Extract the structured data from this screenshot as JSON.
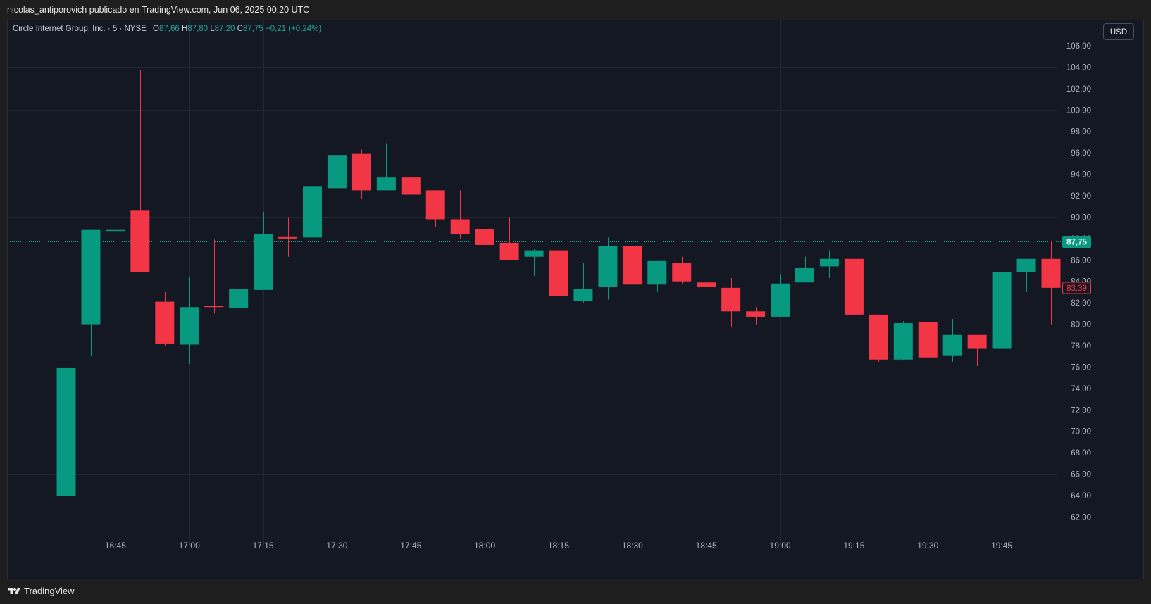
{
  "header": {
    "publish_line": "nicolas_antiporovich publicado en TradingView.com, Jun 06, 2025 00:20 UTC"
  },
  "legend": {
    "symbol": "Circle Internet Group, Inc. · 5 · NYSE",
    "o_label": "O",
    "o_value": "87,66",
    "h_label": "H",
    "h_value": "87,80",
    "l_label": "L",
    "l_value": "87,20",
    "c_label": "C",
    "c_value": "87,75",
    "change": "+0,21 (+0,24%)"
  },
  "currency_button": "USD",
  "footer": {
    "brand": "TradingView"
  },
  "colors": {
    "up": "#089981",
    "down": "#f23645",
    "background": "#141823",
    "grid": "#232734",
    "last_price_line": "#26a69a"
  },
  "chart_data": {
    "type": "candlestick",
    "interval": "5",
    "y_range": [
      60.4,
      107.5
    ],
    "y_ticks": [
      "62,00",
      "64,00",
      "66,00",
      "68,00",
      "70,00",
      "72,00",
      "74,00",
      "76,00",
      "78,00",
      "80,00",
      "82,00",
      "84,00",
      "86,00",
      "88,00",
      "90,00",
      "92,00",
      "94,00",
      "96,00",
      "98,00",
      "100,00",
      "102,00",
      "104,00",
      "106,00"
    ],
    "x_ticks": [
      {
        "label": "16:45",
        "index": 2
      },
      {
        "label": "17:00",
        "index": 5
      },
      {
        "label": "17:15",
        "index": 8
      },
      {
        "label": "17:30",
        "index": 11
      },
      {
        "label": "17:45",
        "index": 14
      },
      {
        "label": "18:00",
        "index": 17
      },
      {
        "label": "18:15",
        "index": 20
      },
      {
        "label": "18:30",
        "index": 23
      },
      {
        "label": "18:45",
        "index": 26
      },
      {
        "label": "19:00",
        "index": 29
      },
      {
        "label": "19:15",
        "index": 32
      },
      {
        "label": "19:30",
        "index": 35
      },
      {
        "label": "19:45",
        "index": 38
      }
    ],
    "candles": [
      {
        "o": 64.0,
        "h": 75.9,
        "l": 64.0,
        "c": 75.9
      },
      {
        "o": 80.0,
        "h": 88.8,
        "l": 77.0,
        "c": 88.8
      },
      {
        "o": 88.8,
        "h": 88.8,
        "l": 88.8,
        "c": 88.8
      },
      {
        "o": 90.6,
        "h": 103.7,
        "l": 84.9,
        "c": 84.9
      },
      {
        "o": 82.1,
        "h": 83.0,
        "l": 78.0,
        "c": 78.2
      },
      {
        "o": 78.1,
        "h": 84.4,
        "l": 76.3,
        "c": 81.6
      },
      {
        "o": 81.7,
        "h": 87.9,
        "l": 81.0,
        "c": 81.6
      },
      {
        "o": 81.5,
        "h": 83.5,
        "l": 79.9,
        "c": 83.3
      },
      {
        "o": 83.2,
        "h": 90.5,
        "l": 83.2,
        "c": 88.4
      },
      {
        "o": 88.2,
        "h": 90.0,
        "l": 86.3,
        "c": 88.0
      },
      {
        "o": 88.1,
        "h": 94.0,
        "l": 88.1,
        "c": 92.9
      },
      {
        "o": 92.7,
        "h": 96.7,
        "l": 92.7,
        "c": 95.8
      },
      {
        "o": 95.9,
        "h": 96.3,
        "l": 91.7,
        "c": 92.5
      },
      {
        "o": 92.5,
        "h": 96.9,
        "l": 92.5,
        "c": 93.7
      },
      {
        "o": 93.7,
        "h": 94.5,
        "l": 91.3,
        "c": 92.1
      },
      {
        "o": 92.5,
        "h": 92.5,
        "l": 89.1,
        "c": 89.8
      },
      {
        "o": 89.8,
        "h": 92.5,
        "l": 88.0,
        "c": 88.4
      },
      {
        "o": 88.9,
        "h": 88.9,
        "l": 86.1,
        "c": 87.4
      },
      {
        "o": 87.6,
        "h": 90.0,
        "l": 86.0,
        "c": 86.0
      },
      {
        "o": 86.3,
        "h": 87.0,
        "l": 84.5,
        "c": 86.9
      },
      {
        "o": 86.9,
        "h": 87.4,
        "l": 82.4,
        "c": 82.6
      },
      {
        "o": 82.2,
        "h": 85.7,
        "l": 82.0,
        "c": 83.3
      },
      {
        "o": 83.5,
        "h": 88.1,
        "l": 82.3,
        "c": 87.3
      },
      {
        "o": 87.3,
        "h": 87.3,
        "l": 83.4,
        "c": 83.7
      },
      {
        "o": 83.7,
        "h": 85.9,
        "l": 83.0,
        "c": 85.9
      },
      {
        "o": 85.7,
        "h": 86.3,
        "l": 83.8,
        "c": 84.0
      },
      {
        "o": 83.9,
        "h": 84.9,
        "l": 83.4,
        "c": 83.5
      },
      {
        "o": 83.4,
        "h": 84.3,
        "l": 79.7,
        "c": 81.2
      },
      {
        "o": 81.2,
        "h": 81.6,
        "l": 80.0,
        "c": 80.7
      },
      {
        "o": 80.7,
        "h": 84.7,
        "l": 80.7,
        "c": 83.8
      },
      {
        "o": 83.9,
        "h": 86.3,
        "l": 83.9,
        "c": 85.3
      },
      {
        "o": 85.4,
        "h": 86.9,
        "l": 84.3,
        "c": 86.1
      },
      {
        "o": 86.1,
        "h": 86.3,
        "l": 80.9,
        "c": 80.9
      },
      {
        "o": 80.9,
        "h": 80.9,
        "l": 76.5,
        "c": 76.7
      },
      {
        "o": 76.7,
        "h": 80.3,
        "l": 76.6,
        "c": 80.1
      },
      {
        "o": 80.2,
        "h": 80.2,
        "l": 76.4,
        "c": 76.9
      },
      {
        "o": 77.1,
        "h": 80.5,
        "l": 76.5,
        "c": 79.0
      },
      {
        "o": 79.0,
        "h": 79.0,
        "l": 76.1,
        "c": 77.7
      },
      {
        "o": 77.7,
        "h": 85.0,
        "l": 77.7,
        "c": 84.9
      },
      {
        "o": 84.9,
        "h": 86.1,
        "l": 83.0,
        "c": 86.1
      },
      {
        "o": 86.1,
        "h": 87.8,
        "l": 80.0,
        "c": 83.4
      }
    ],
    "last_price": {
      "value": 87.75,
      "label": "87,75"
    },
    "marker_price": {
      "value": 83.39,
      "label": "83,39"
    }
  }
}
